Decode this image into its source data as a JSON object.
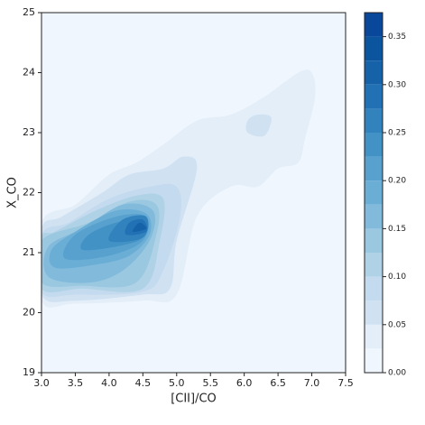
{
  "chart_data": {
    "type": "contourf",
    "x_label": "[CII]/CO",
    "y_label": "X_CO",
    "xlim": [
      3,
      7.5
    ],
    "ylim": [
      19,
      25
    ],
    "xticks": [
      {
        "value": 3,
        "label": "3.0"
      },
      {
        "value": 3.5,
        "label": "3.5"
      },
      {
        "value": 4,
        "label": "4.0"
      },
      {
        "value": 4.5,
        "label": "4.5"
      },
      {
        "value": 5,
        "label": "5.0"
      },
      {
        "value": 5.5,
        "label": "5.5"
      },
      {
        "value": 6,
        "label": "6.0"
      },
      {
        "value": 6.5,
        "label": "6.5"
      },
      {
        "value": 7,
        "label": "7.0"
      },
      {
        "value": 7.5,
        "label": "7.5"
      }
    ],
    "yticks": [
      19,
      20,
      21,
      22,
      23,
      24,
      25
    ],
    "levels": [
      0,
      0.025,
      0.05,
      0.075,
      0.1,
      0.125,
      0.15,
      0.175,
      0.2,
      0.225,
      0.25,
      0.275,
      0.3,
      0.325,
      0.35,
      0.375
    ],
    "colors": [
      "#f0f6fd",
      "#e3eef9",
      "#d0e1f2",
      "#c4daee",
      "#b0d2e7",
      "#9ac8e0",
      "#82badb",
      "#6aaed6",
      "#58a1cf",
      "#4292c6",
      "#3282be",
      "#2271b5",
      "#1562a9",
      "#0b559f",
      "#08479a"
    ],
    "clim": [
      0,
      0.375
    ],
    "cticks": [
      {
        "value": 0,
        "label": "0.00"
      },
      {
        "value": 0.05,
        "label": "0.05"
      },
      {
        "value": 0.1,
        "label": "0.10"
      },
      {
        "value": 0.15,
        "label": "0.15"
      },
      {
        "value": 0.2,
        "label": "0.20"
      },
      {
        "value": 0.25,
        "label": "0.25"
      },
      {
        "value": 0.3,
        "label": "0.30"
      },
      {
        "value": 0.35,
        "label": "0.35"
      }
    ],
    "contours": [
      {
        "level": 1,
        "x": [
          3,
          3.5,
          4.5,
          5,
          5.3,
          5.8,
          6.2,
          6.5,
          6.8,
          6.9,
          7.05,
          7.0,
          6.8,
          6.3,
          5.8,
          5.3,
          4.8,
          4.4,
          4.0,
          3.5,
          3
        ],
        "y": [
          20.2,
          20.15,
          20.2,
          20.3,
          21.6,
          22.1,
          22.1,
          22.4,
          22.5,
          22.9,
          23.6,
          24.0,
          24.0,
          23.6,
          23.3,
          23.2,
          22.8,
          22.5,
          22.3,
          21.8,
          21.5
        ]
      },
      {
        "level": 2,
        "x": [
          3,
          3.5,
          4.5,
          4.9,
          5.0,
          5.3,
          5.1,
          4.8,
          4.3,
          3.9,
          3.3,
          3
        ],
        "y": [
          20.3,
          20.2,
          20.3,
          20.4,
          21.2,
          22.4,
          22.6,
          22.4,
          22.3,
          22.0,
          21.6,
          21.4
        ]
      },
      {
        "level": 2,
        "x": [
          6.05,
          6.3,
          6.4,
          6.2,
          6.05
        ],
        "y": [
          23.0,
          22.95,
          23.25,
          23.3,
          23.2
        ]
      },
      {
        "level": 3,
        "x": [
          3,
          3.5,
          4.5,
          4.8,
          5.05,
          5.0,
          4.6,
          4.0,
          3.4,
          3
        ],
        "y": [
          20.35,
          20.3,
          20.35,
          20.7,
          21.6,
          22.1,
          22.1,
          21.9,
          21.5,
          21.3
        ]
      },
      {
        "level": 4,
        "x": [
          3,
          3.6,
          4.5,
          4.75,
          4.8,
          4.4,
          3.8,
          3.2,
          3
        ],
        "y": [
          20.4,
          20.4,
          20.4,
          21.2,
          21.9,
          21.95,
          21.7,
          21.35,
          21.25
        ]
      },
      {
        "level": 5,
        "x": [
          3,
          3.6,
          4.4,
          4.7,
          4.7,
          4.3,
          3.7,
          3
        ],
        "y": [
          20.5,
          20.45,
          20.5,
          21.3,
          21.8,
          21.85,
          21.5,
          21.2
        ]
      },
      {
        "level": 6,
        "x": [
          3.1,
          3.7,
          4.2,
          4.6,
          4.65,
          4.2,
          3.6,
          3.1
        ],
        "y": [
          20.6,
          20.5,
          20.7,
          21.2,
          21.7,
          21.8,
          21.4,
          21.1
        ]
      },
      {
        "level": 7,
        "x": [
          3.2,
          3.8,
          4.3,
          4.6,
          4.55,
          4.1,
          3.5,
          3.15
        ],
        "y": [
          20.75,
          20.8,
          20.95,
          21.3,
          21.65,
          21.7,
          21.35,
          21.05
        ]
      },
      {
        "level": 8,
        "x": [
          3.35,
          4.0,
          4.5,
          4.55,
          4.1,
          3.5
        ],
        "y": [
          20.9,
          20.95,
          21.2,
          21.6,
          21.6,
          21.3
        ]
      },
      {
        "level": 9,
        "x": [
          3.6,
          4.1,
          4.5,
          4.5,
          4.1,
          3.7
        ],
        "y": [
          21.05,
          21.1,
          21.25,
          21.55,
          21.5,
          21.3
        ]
      },
      {
        "level": 10,
        "x": [
          4.0,
          4.5,
          4.55,
          4.2
        ],
        "y": [
          21.2,
          21.25,
          21.6,
          21.55
        ]
      },
      {
        "level": 11,
        "x": [
          4.25,
          4.55,
          4.5,
          4.3
        ],
        "y": [
          21.3,
          21.35,
          21.55,
          21.5
        ]
      },
      {
        "level": 12,
        "x": [
          4.35,
          4.55,
          4.45
        ],
        "y": [
          21.35,
          21.4,
          21.5
        ]
      }
    ]
  }
}
